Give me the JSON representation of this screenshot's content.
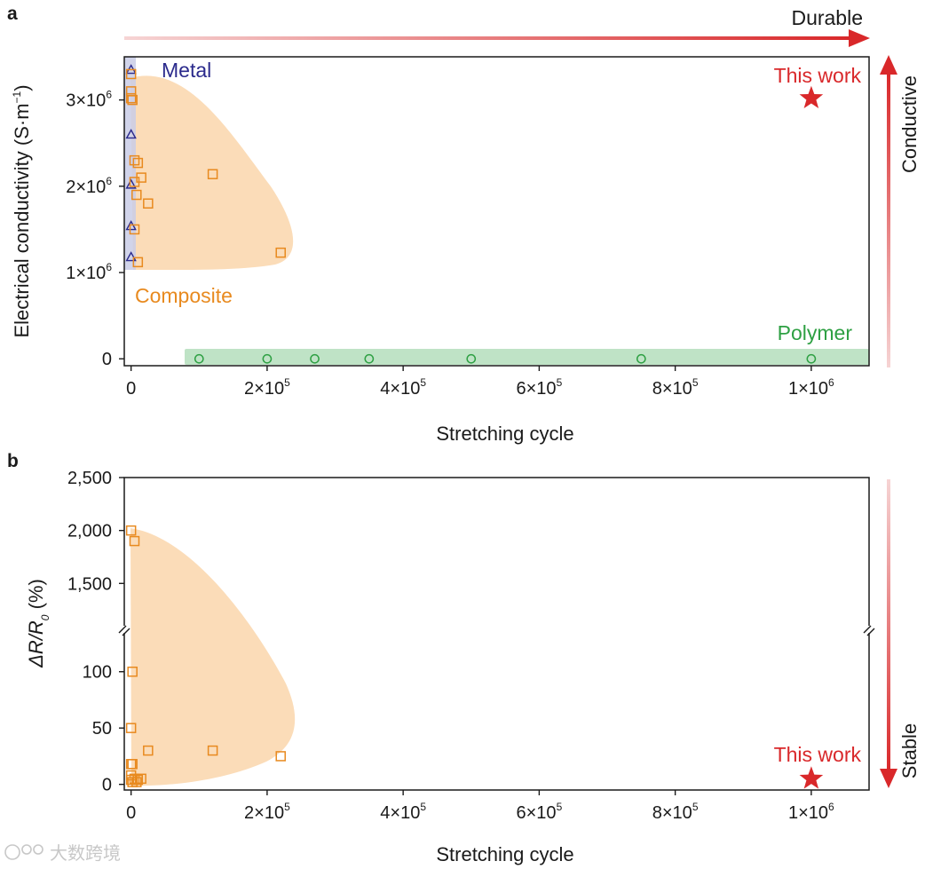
{
  "colors": {
    "red": "#d9282a",
    "orange": "#e88a1f",
    "orange_fill": "#fbdcb8",
    "navy": "#2b2a8c",
    "metal_fill": "#c9cde6",
    "green": "#2ea043",
    "green_fill": "#bfe3c6",
    "axis": "#1a1a1a"
  },
  "arrows": {
    "durable": "Durable",
    "conductive": "Conductive",
    "stable": "Stable"
  },
  "watermark": {
    "text": "大数跨境",
    "icon": "watermark-logo-icon"
  },
  "chart_data": [
    {
      "panel": "a",
      "type": "scatter",
      "xlabel": "Stretching cycle",
      "ylabel_main": "Electrical conductivity (S·m",
      "ylabel_sup": "−1",
      "ylabel_close": ")",
      "xlim": [
        -10000,
        1085000
      ],
      "ylim": [
        -80000,
        3500000
      ],
      "xticks": [
        {
          "value": 0,
          "base": "0",
          "exp": ""
        },
        {
          "value": 200000,
          "base": "2×10",
          "exp": "5"
        },
        {
          "value": 400000,
          "base": "4×10",
          "exp": "5"
        },
        {
          "value": 600000,
          "base": "6×10",
          "exp": "5"
        },
        {
          "value": 800000,
          "base": "8×10",
          "exp": "5"
        },
        {
          "value": 1000000,
          "base": "1×10",
          "exp": "6"
        }
      ],
      "yticks": [
        {
          "value": 0,
          "base": "0",
          "exp": ""
        },
        {
          "value": 1000000,
          "base": "1×10",
          "exp": "6"
        },
        {
          "value": 2000000,
          "base": "2×10",
          "exp": "6"
        },
        {
          "value": 3000000,
          "base": "3×10",
          "exp": "6"
        }
      ],
      "group_labels": {
        "metal": "Metal",
        "composite": "Composite",
        "polymer": "Polymer",
        "this_work": "This work"
      },
      "series": [
        {
          "name": "Metal",
          "marker": "triangle",
          "points": [
            [
              0,
              3350000
            ],
            [
              0,
              2600000
            ],
            [
              0,
              2020000
            ],
            [
              0,
              1540000
            ],
            [
              0,
              1180000
            ]
          ]
        },
        {
          "name": "Composite",
          "marker": "square",
          "points": [
            [
              0,
              3300000
            ],
            [
              0,
              3100000
            ],
            [
              0,
              3020000
            ],
            [
              2000,
              3000000
            ],
            [
              5000,
              2300000
            ],
            [
              10000,
              2270000
            ],
            [
              15000,
              2100000
            ],
            [
              5000,
              2050000
            ],
            [
              8000,
              1900000
            ],
            [
              25000,
              1800000
            ],
            [
              5000,
              1500000
            ],
            [
              10000,
              1120000
            ],
            [
              120000,
              2140000
            ],
            [
              220000,
              1230000
            ]
          ]
        },
        {
          "name": "Polymer",
          "marker": "circle",
          "points": [
            [
              100000,
              0
            ],
            [
              200000,
              0
            ],
            [
              270000,
              0
            ],
            [
              350000,
              0
            ],
            [
              500000,
              0
            ],
            [
              750000,
              0
            ],
            [
              1000000,
              0
            ]
          ]
        },
        {
          "name": "This work",
          "marker": "star",
          "points": [
            [
              1000000,
              3020000
            ]
          ]
        }
      ]
    },
    {
      "panel": "b",
      "type": "scatter",
      "xlabel": "Stretching cycle",
      "ylabel_delta": "ΔR/R",
      "ylabel_sub": "0",
      "ylabel_unit": " (%)",
      "xlim": [
        -10000,
        1085000
      ],
      "axis_break": true,
      "lower_ylim": [
        -5,
        125
      ],
      "upper_ylim": [
        1100,
        2500
      ],
      "xticks": [
        {
          "value": 0,
          "base": "0",
          "exp": ""
        },
        {
          "value": 200000,
          "base": "2×10",
          "exp": "5"
        },
        {
          "value": 400000,
          "base": "4×10",
          "exp": "5"
        },
        {
          "value": 600000,
          "base": "6×10",
          "exp": "5"
        },
        {
          "value": 800000,
          "base": "8×10",
          "exp": "5"
        },
        {
          "value": 1000000,
          "base": "1×10",
          "exp": "6"
        }
      ],
      "yticks_upper": [
        {
          "value": 1500,
          "label": "1,500"
        },
        {
          "value": 2000,
          "label": "2,000"
        },
        {
          "value": 2500,
          "label": "2,500"
        }
      ],
      "yticks_lower": [
        {
          "value": 0,
          "label": "0"
        },
        {
          "value": 50,
          "label": "50"
        },
        {
          "value": 100,
          "label": "100"
        }
      ],
      "group_labels": {
        "this_work": "This work"
      },
      "series": [
        {
          "name": "Composite",
          "marker": "square",
          "points": [
            [
              0,
              2000
            ],
            [
              5000,
              1900
            ],
            [
              2000,
              100
            ],
            [
              0,
              50
            ],
            [
              0,
              18
            ],
            [
              2000,
              18
            ],
            [
              0,
              8
            ],
            [
              0,
              4
            ],
            [
              2000,
              2
            ],
            [
              5000,
              5
            ],
            [
              8000,
              2
            ],
            [
              10000,
              4
            ],
            [
              15000,
              5
            ],
            [
              25000,
              30
            ],
            [
              120000,
              30
            ],
            [
              220000,
              25
            ]
          ]
        },
        {
          "name": "This work",
          "marker": "star",
          "points": [
            [
              1000000,
              5
            ]
          ]
        }
      ]
    }
  ]
}
